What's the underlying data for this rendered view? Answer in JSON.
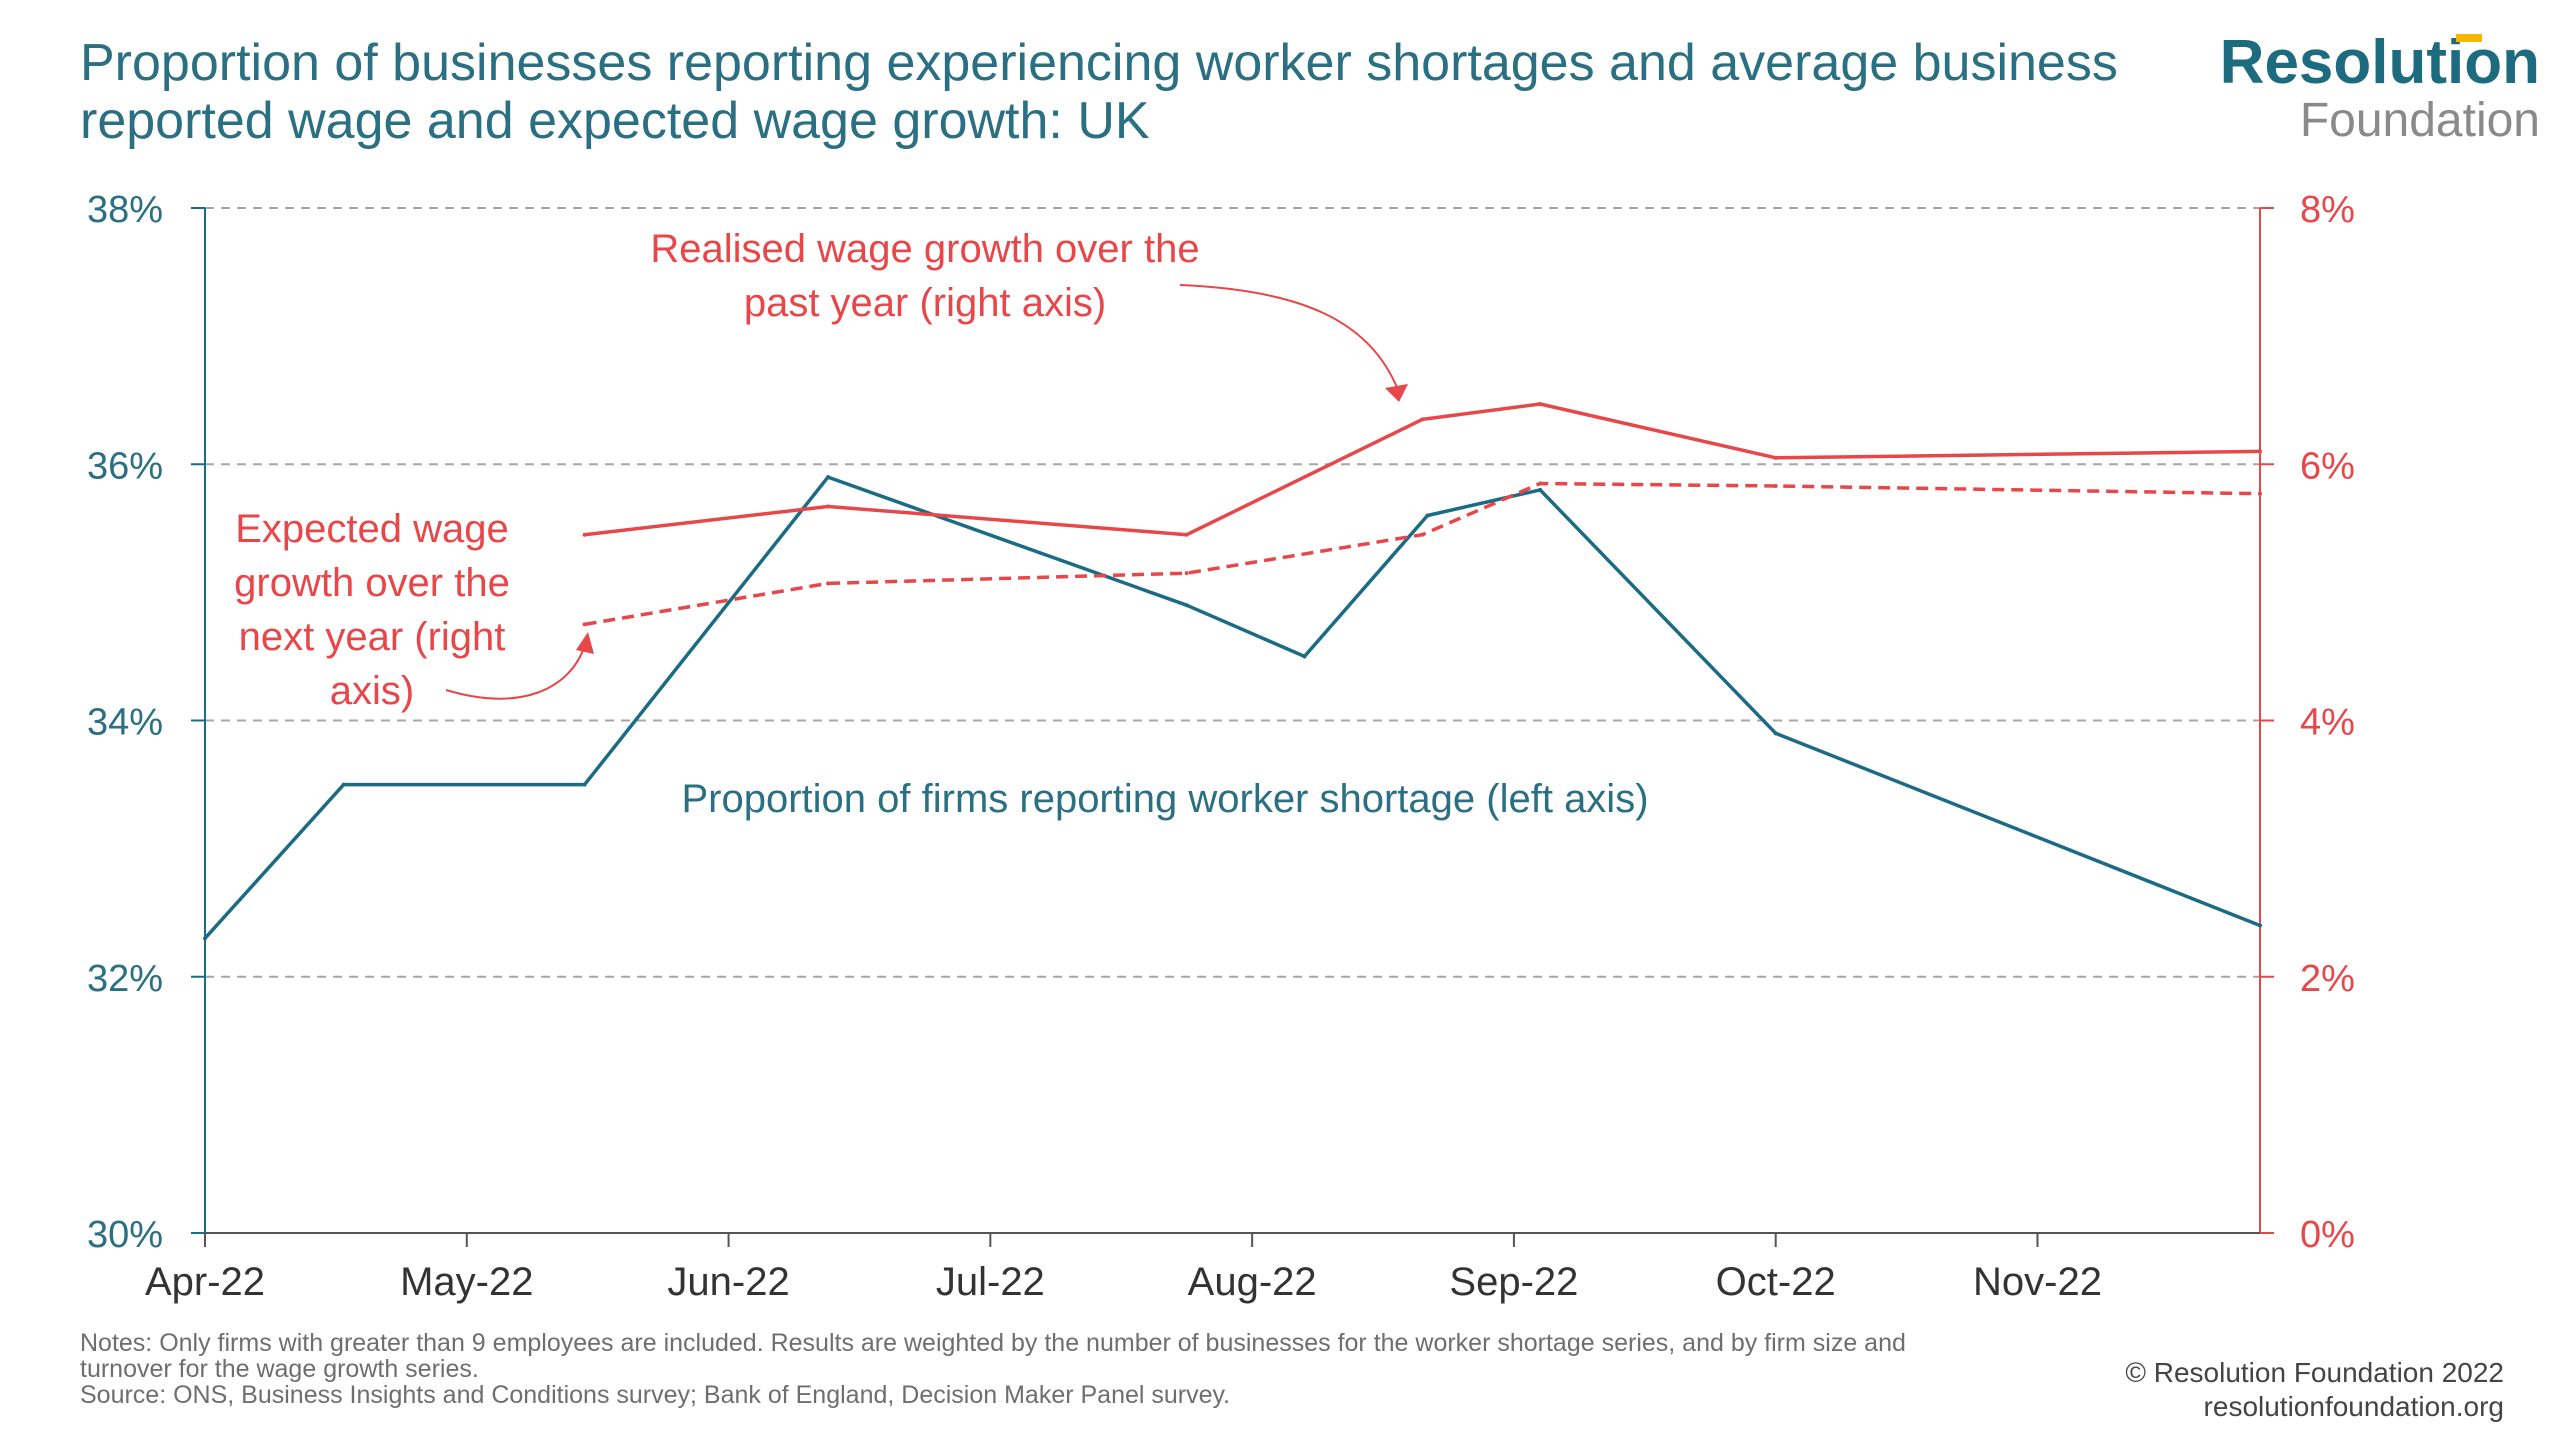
{
  "title": {
    "line1": "Proportion of businesses reporting experiencing worker shortages and average business",
    "line2": "reported wage and expected wage growth: UK"
  },
  "logo": {
    "line1": "Resolution",
    "line2": "Foundation"
  },
  "notes": {
    "line1": "Notes: Only firms with greater than 9 employees are included. Results are weighted by the number of businesses for the worker shortage series, and by firm size and",
    "line2": "turnover for the wage growth series.",
    "line3": "Source: ONS, Business Insights and Conditions survey; Bank of England, Decision Maker Panel survey."
  },
  "copyright": {
    "line1": "© Resolution Foundation 2022",
    "line2": "resolutionfoundation.org"
  },
  "colors": {
    "teal": "#1c6b84",
    "red": "#e8474a",
    "grid": "#a6a6a6",
    "text_teal": "#2a6f82"
  },
  "chart_data": {
    "type": "line",
    "x_categories": [
      "Apr-22",
      "May-22",
      "Jun-22",
      "Jul-22",
      "Aug-22",
      "Sep-22",
      "Oct-22",
      "Nov-22"
    ],
    "x_range_months": [
      0,
      7.85
    ],
    "left_axis": {
      "range": [
        30,
        38
      ],
      "ticks": [
        "30%",
        "32%",
        "34%",
        "36%",
        "38%"
      ],
      "tick_values": [
        30,
        32,
        34,
        36,
        38
      ]
    },
    "right_axis": {
      "range": [
        0,
        8
      ],
      "ticks": [
        "0%",
        "2%",
        "4%",
        "6%",
        "8%"
      ],
      "tick_values": [
        0,
        2,
        4,
        6,
        8
      ]
    },
    "grid": "horizontal dashed",
    "series": [
      {
        "name": "Proportion of firms reporting worker shortage (left axis)",
        "axis": "left",
        "style": "solid",
        "color": "#1c6b84",
        "x": [
          0,
          0.53,
          1.45,
          2.38,
          3.75,
          4.2,
          4.67,
          5.1,
          6.0,
          7.85
        ],
        "y": [
          32.3,
          33.5,
          33.5,
          35.9,
          34.9,
          34.5,
          35.6,
          35.8,
          33.9,
          32.4
        ]
      },
      {
        "name": "Realised wage growth over the past year (right axis)",
        "axis": "right",
        "style": "solid",
        "color": "#e8474a",
        "x": [
          1.45,
          2.38,
          3.75,
          4.65,
          5.1,
          6.0,
          7.85
        ],
        "y": [
          5.45,
          5.67,
          5.45,
          6.35,
          6.47,
          6.05,
          6.1
        ]
      },
      {
        "name": "Expected wage growth over the next year (right axis)",
        "axis": "right",
        "style": "dashed",
        "color": "#e8474a",
        "x": [
          1.45,
          2.38,
          3.75,
          4.65,
          5.1,
          6.0,
          7.85
        ],
        "y": [
          4.75,
          5.07,
          5.15,
          5.45,
          5.85,
          5.83,
          5.77
        ]
      }
    ],
    "annotations": [
      {
        "name": "realised",
        "lines": [
          "Realised wage growth over the",
          "past year (right axis)"
        ]
      },
      {
        "name": "expected",
        "lines": [
          "Expected wage",
          "growth over the",
          "next year (right",
          "axis)"
        ]
      },
      {
        "name": "shortage",
        "lines": [
          "Proportion of firms reporting worker shortage (left axis)"
        ]
      }
    ]
  }
}
